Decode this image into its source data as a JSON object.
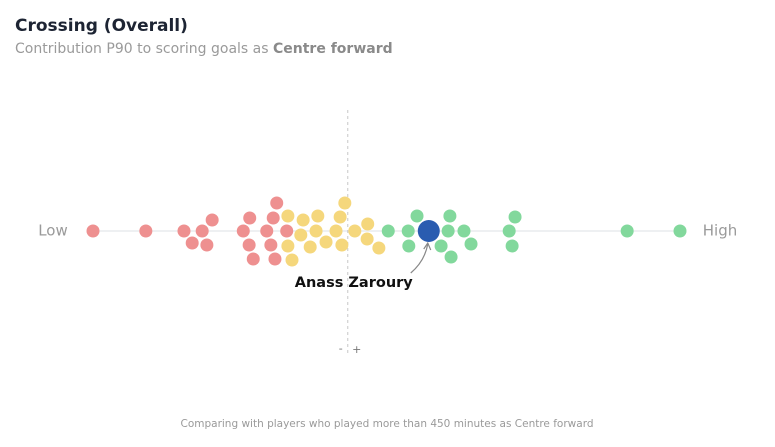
{
  "chart_data": {
    "type": "beeswarm",
    "title": "Crossing (Overall)",
    "subtitle": "Contribution P90 to scoring goals as ",
    "subtitle_emphasis": "Centre forward",
    "low_label": "Low",
    "high_label": "High",
    "minus_label": "-",
    "plus_label": "+",
    "xlim": [
      0,
      100
    ],
    "reference_x": 43.4,
    "series": [
      {
        "color": "#ee9090",
        "values": [
          0,
          9.0,
          15.5,
          16.9,
          18.6,
          19.4,
          20.3,
          25.6,
          26.6,
          26.7,
          27.3,
          29.6,
          30.3,
          30.7,
          31.0,
          31.3,
          33.0
        ]
      },
      {
        "color": "#f5d77c",
        "values": [
          33.2,
          33.2,
          33.9,
          35.4,
          35.8,
          37.0,
          38.0,
          38.3,
          39.7,
          41.4,
          42.1,
          42.4,
          42.9,
          44.6,
          46.7,
          46.8,
          48.7
        ]
      },
      {
        "color": "#82d89c",
        "values": [
          50.3,
          53.7,
          53.8,
          55.2,
          59.3,
          60.5,
          60.8,
          61.0,
          63.2,
          64.4,
          70.9,
          71.4,
          71.9,
          91.0,
          100
        ]
      }
    ],
    "highlight": {
      "name": "Anass Zaroury",
      "color": "#2a5cb0",
      "value": 57.2
    },
    "footnote": "Comparing with players who played more than 450 minutes as Centre forward"
  }
}
